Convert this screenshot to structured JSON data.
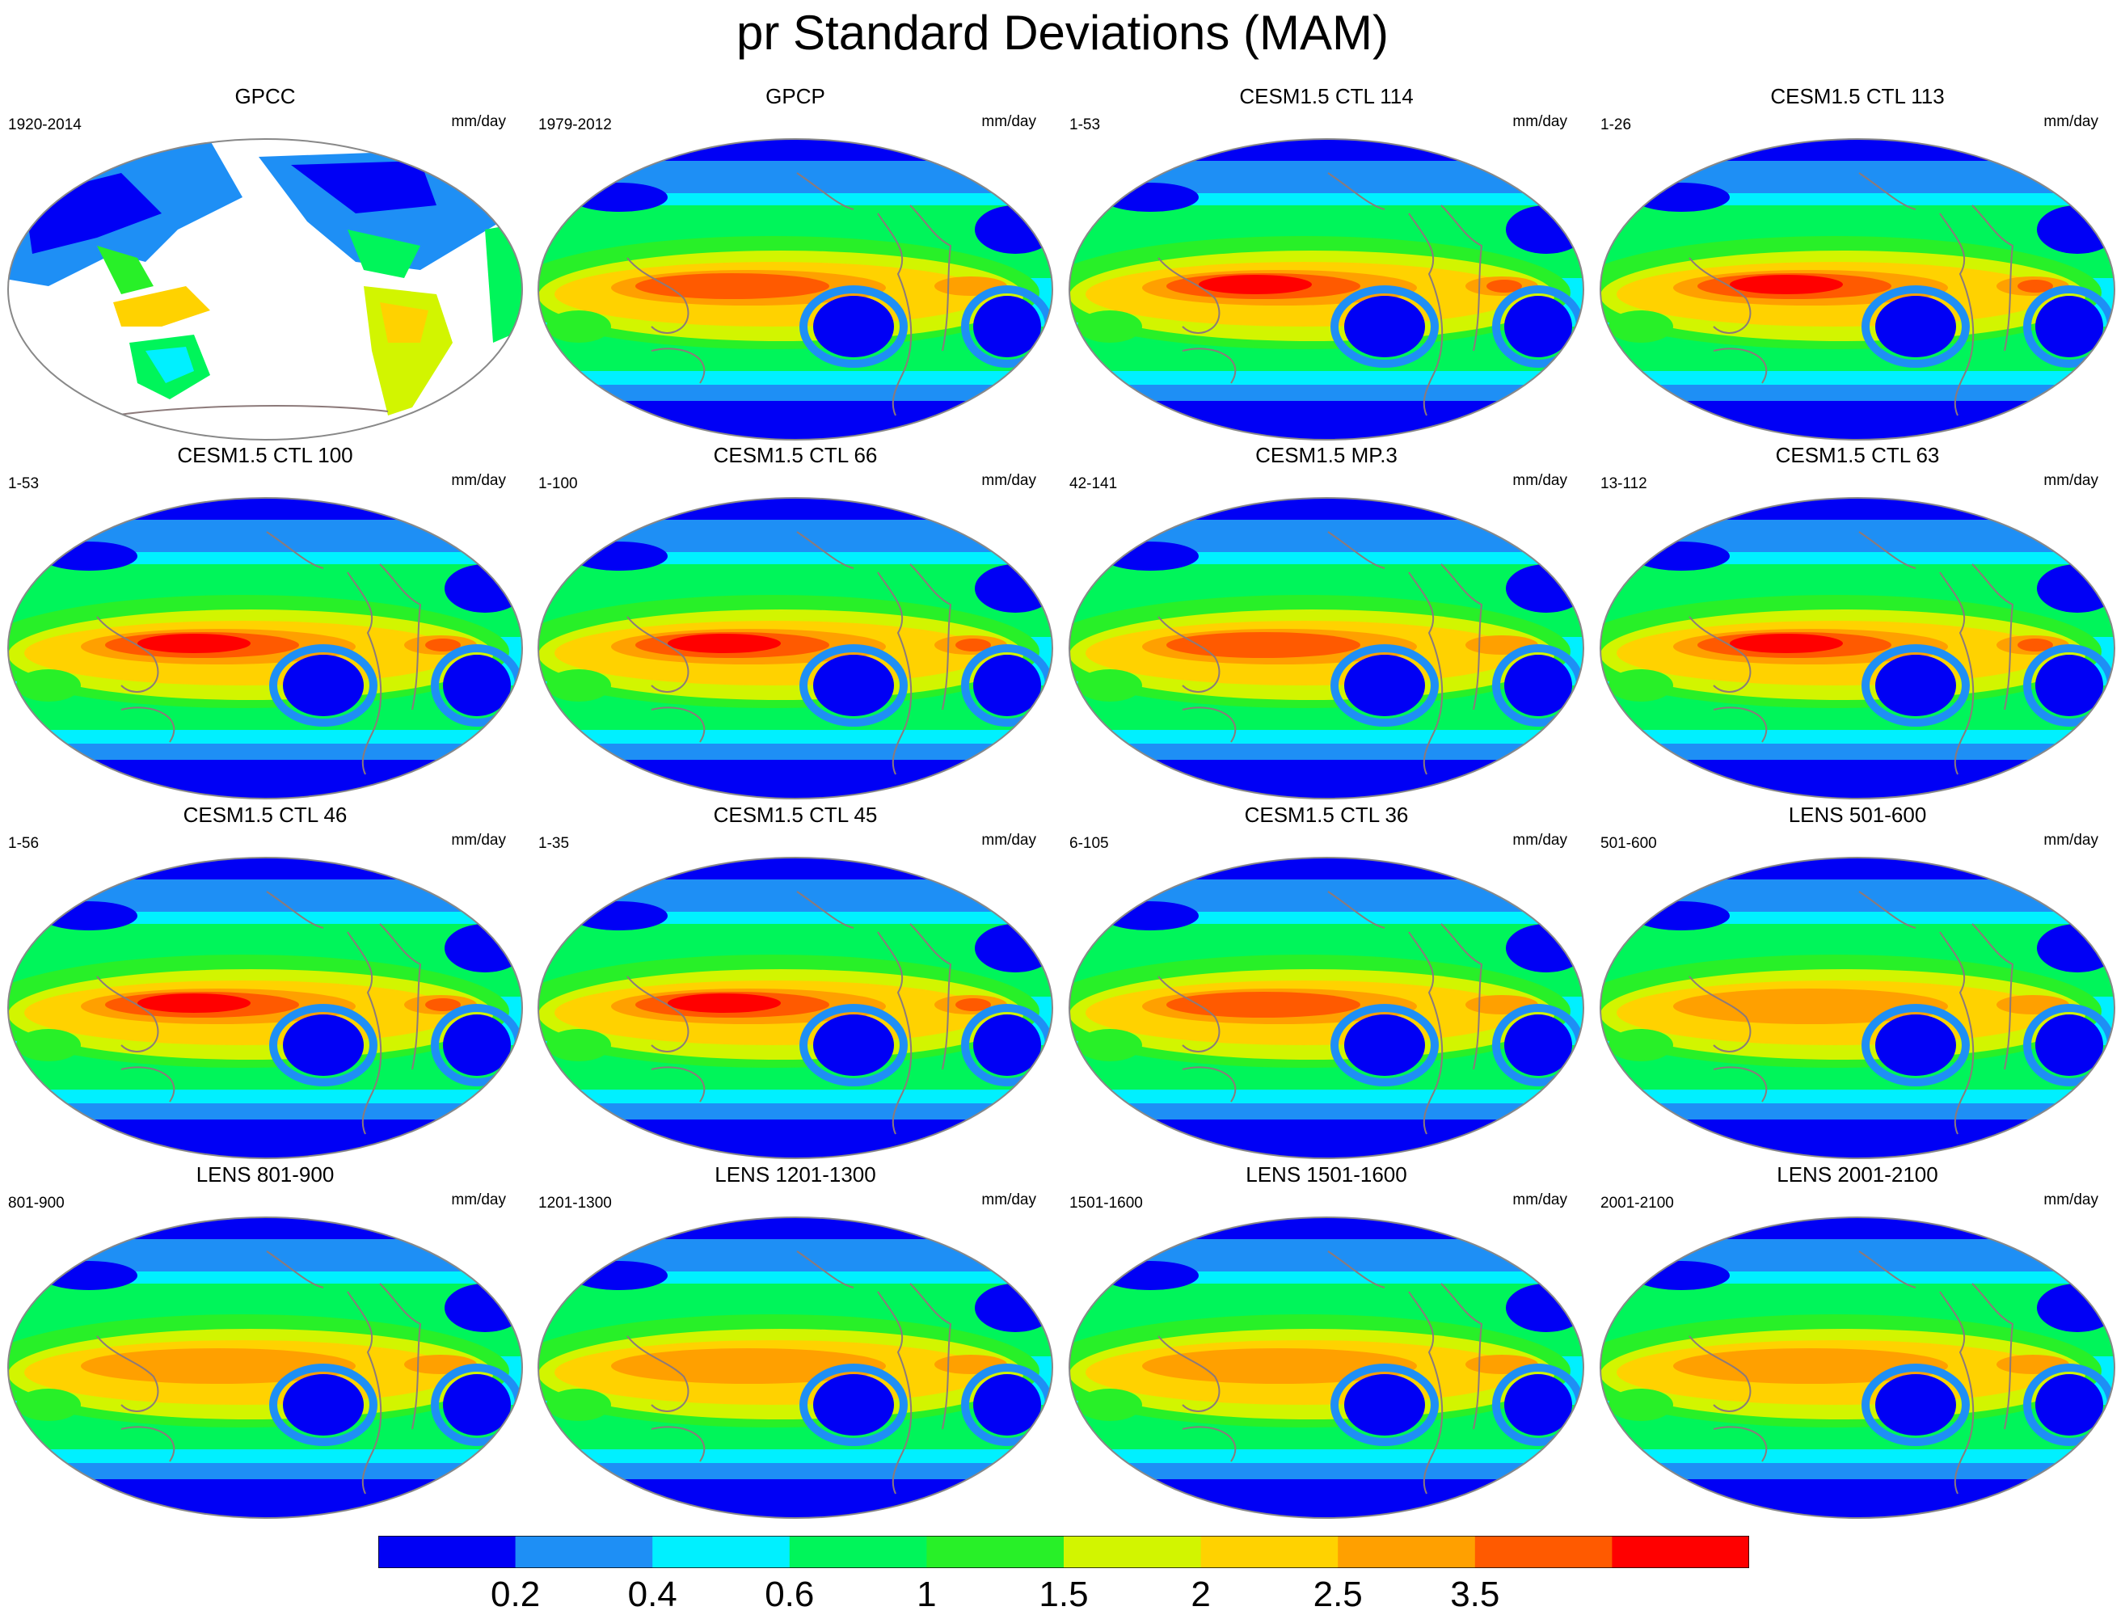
{
  "title": "pr Standard Deviations (MAM)",
  "units": "mm/day",
  "colors": {
    "levels": [
      "#0000f5",
      "#1e8ff5",
      "#00f0ff",
      "#00f55a",
      "#28f028",
      "#d2f500",
      "#ffd200",
      "#ffa000",
      "#ff5a00",
      "#ff0000"
    ],
    "land_outline": "#8c7a7a",
    "border": "#888888"
  },
  "panels": [
    {
      "title": "GPCC",
      "period": "1920-2014",
      "type": "land"
    },
    {
      "title": "GPCP",
      "period": "1979-2012",
      "type": "full",
      "enso": 2
    },
    {
      "title": "CESM1.5 CTL 114",
      "period": "1-53",
      "type": "full",
      "enso": 3
    },
    {
      "title": "CESM1.5 CTL 113",
      "period": "1-26",
      "type": "full",
      "enso": 3
    },
    {
      "title": "CESM1.5 CTL 100",
      "period": "1-53",
      "type": "full",
      "enso": 3
    },
    {
      "title": "CESM1.5 CTL 66",
      "period": "1-100",
      "type": "full",
      "enso": 3
    },
    {
      "title": "CESM1.5 MP.3",
      "period": "42-141",
      "type": "full",
      "enso": 2
    },
    {
      "title": "CESM1.5 CTL 63",
      "period": "13-112",
      "type": "full",
      "enso": 3
    },
    {
      "title": "CESM1.5 CTL 46",
      "period": "1-56",
      "type": "full",
      "enso": 3
    },
    {
      "title": "CESM1.5 CTL 45",
      "period": "1-35",
      "type": "full",
      "enso": 3
    },
    {
      "title": "CESM1.5 CTL 36",
      "period": "6-105",
      "type": "full",
      "enso": 2
    },
    {
      "title": "LENS 501-600",
      "period": "501-600",
      "type": "full",
      "enso": 1
    },
    {
      "title": "LENS 801-900",
      "period": "801-900",
      "type": "full",
      "enso": 1
    },
    {
      "title": "LENS 1201-1300",
      "period": "1201-1300",
      "type": "full",
      "enso": 1
    },
    {
      "title": "LENS 1501-1600",
      "period": "1501-1600",
      "type": "full",
      "enso": 1
    },
    {
      "title": "LENS 2001-2100",
      "period": "2001-2100",
      "type": "full",
      "enso": 1
    }
  ],
  "colorbar": {
    "labels": [
      "0.2",
      "0.4",
      "0.6",
      "1",
      "1.5",
      "2",
      "2.5",
      "3.5"
    ]
  }
}
